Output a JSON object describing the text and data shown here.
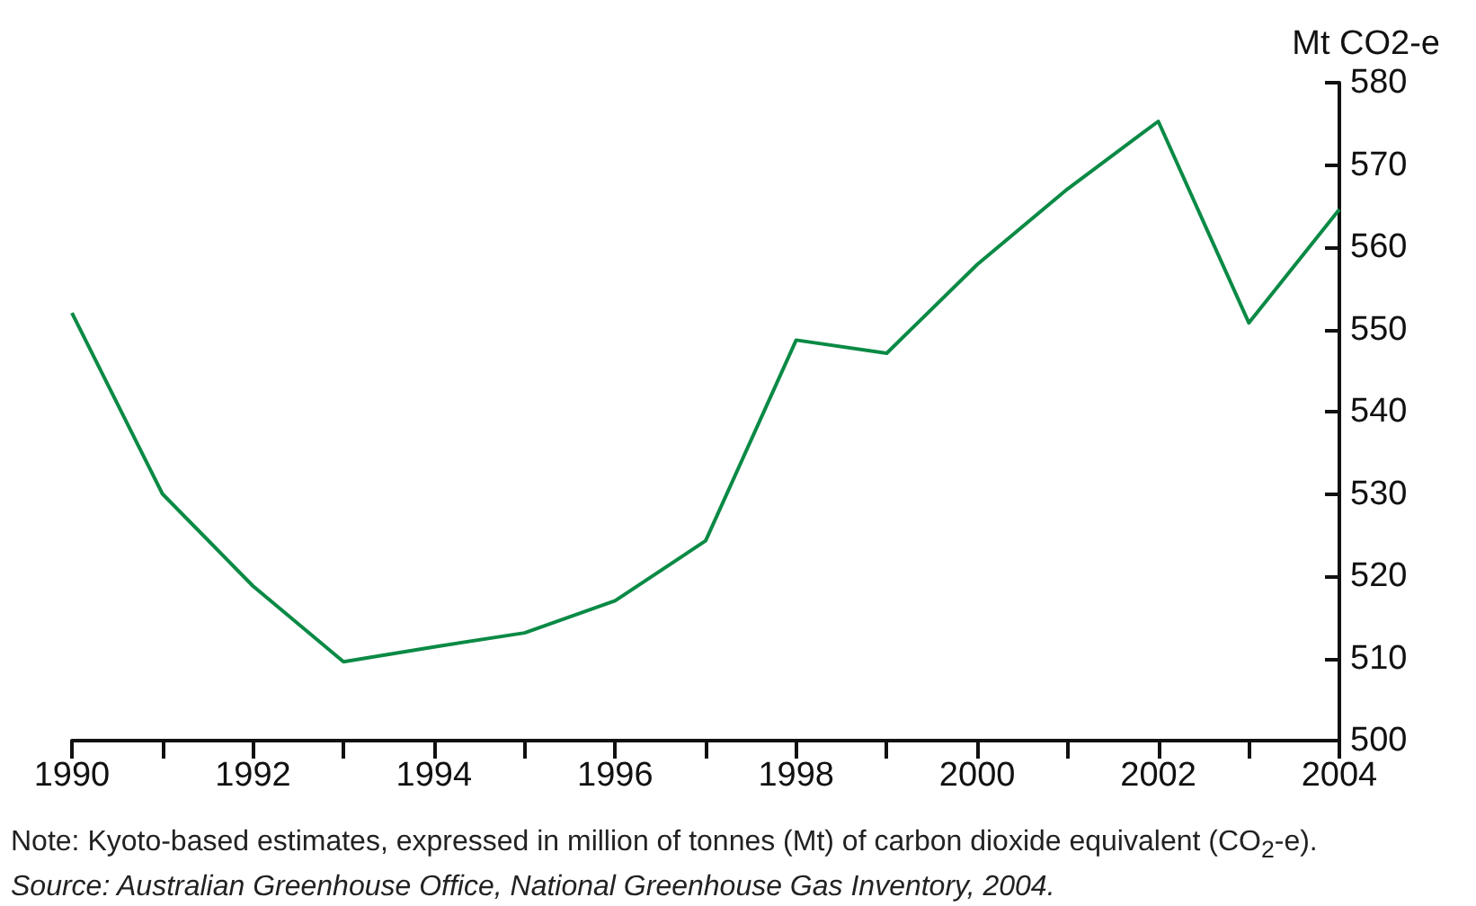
{
  "chart_data": {
    "type": "line",
    "ylabel": "Mt CO2-e",
    "x": [
      1990,
      1991,
      1992,
      1993,
      1994,
      1995,
      1996,
      1997,
      1998,
      1999,
      2000,
      2001,
      2002,
      2003,
      2004
    ],
    "series": [
      {
        "color": "#0a8a45",
        "values": [
          552,
          530,
          518.8,
          509.6,
          511.4,
          513.1,
          517,
          524.3,
          548.7,
          547.1,
          557.9,
          567.1,
          575.3,
          550.8,
          564.6
        ]
      }
    ],
    "xlim": [
      1990,
      2004
    ],
    "xticks": [
      1990,
      {
        "value": 1991,
        "label": null
      },
      1992,
      {
        "value": 1993,
        "label": null
      },
      1994,
      {
        "value": 1995,
        "label": null
      },
      1996,
      {
        "value": 1997,
        "label": null
      },
      1998,
      {
        "value": 1999,
        "label": null
      },
      2000,
      {
        "value": 2001,
        "label": null
      },
      2002,
      {
        "value": 2003,
        "label": null
      },
      2004
    ],
    "ylim": [
      500,
      580
    ],
    "yticks": [
      500,
      510,
      520,
      530,
      540,
      550,
      560,
      570,
      580
    ],
    "grid": false,
    "marker": "none",
    "line_style": "solid",
    "annotations": [
      "Note: Kyoto-based estimates, expressed in million of tonnes (Mt) of carbon dioxide equivalent (CO$_{2}$-e).",
      "Source: Australian Greenhouse Office, National Greenhouse Gas Inventory, 2004."
    ]
  }
}
